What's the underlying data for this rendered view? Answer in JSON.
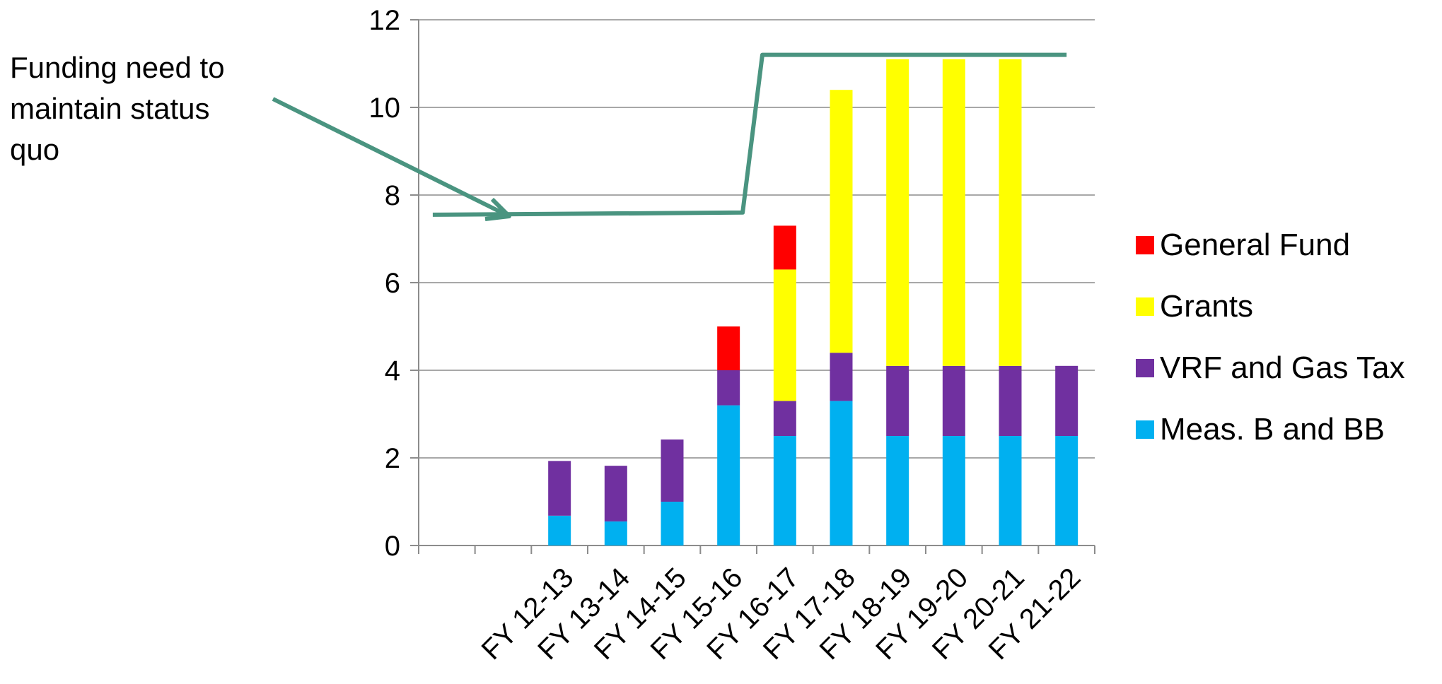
{
  "chart_data": {
    "type": "bar",
    "stacked": true,
    "categories": [
      "",
      "",
      "FY 12-13",
      "FY 13-14",
      "FY 14-15",
      "FY 15-16",
      "FY 16-17",
      "FY 17-18",
      "FY 18-19",
      "FY 19-20",
      "FY 20-21",
      "FY 21-22"
    ],
    "series": [
      {
        "name": "Meas. B and BB",
        "color": "#00B0F0",
        "values": [
          0,
          0,
          0.68,
          0.55,
          1.0,
          3.2,
          2.5,
          3.3,
          2.5,
          2.5,
          2.5,
          2.5
        ]
      },
      {
        "name": "VRF and Gas Tax",
        "color": "#7030A0",
        "values": [
          0,
          0,
          1.25,
          1.27,
          1.42,
          0.8,
          0.8,
          1.1,
          1.6,
          1.6,
          1.6,
          1.6
        ]
      },
      {
        "name": "Grants",
        "color": "#FFFF00",
        "values": [
          0,
          0,
          0,
          0,
          0,
          0,
          3.0,
          6.0,
          7.0,
          7.0,
          7.0,
          0
        ]
      },
      {
        "name": "General Fund",
        "color": "#FF0000",
        "values": [
          0,
          0,
          0,
          0,
          0,
          1.0,
          1.0,
          0,
          0,
          0,
          0,
          0
        ]
      }
    ],
    "ylim": [
      0,
      12
    ],
    "yticks": [
      "0",
      "2",
      "4",
      "6",
      "8",
      "10",
      "12"
    ],
    "grid": true,
    "legend_position": "right",
    "legend_order": [
      "General Fund",
      "Grants",
      "VRF and Gas Tax",
      "Meas. B and BB"
    ],
    "annotation": {
      "lines": [
        "Funding need to",
        "maintain status",
        "quo"
      ],
      "color": "#4A9480",
      "status_quo_line": [
        {
          "x": 0.25,
          "y": 7.55
        },
        {
          "x": 5.75,
          "y": 7.6
        },
        {
          "x": 6.1,
          "y": 11.2
        },
        {
          "x": 11.5,
          "y": 11.2
        }
      ]
    }
  }
}
